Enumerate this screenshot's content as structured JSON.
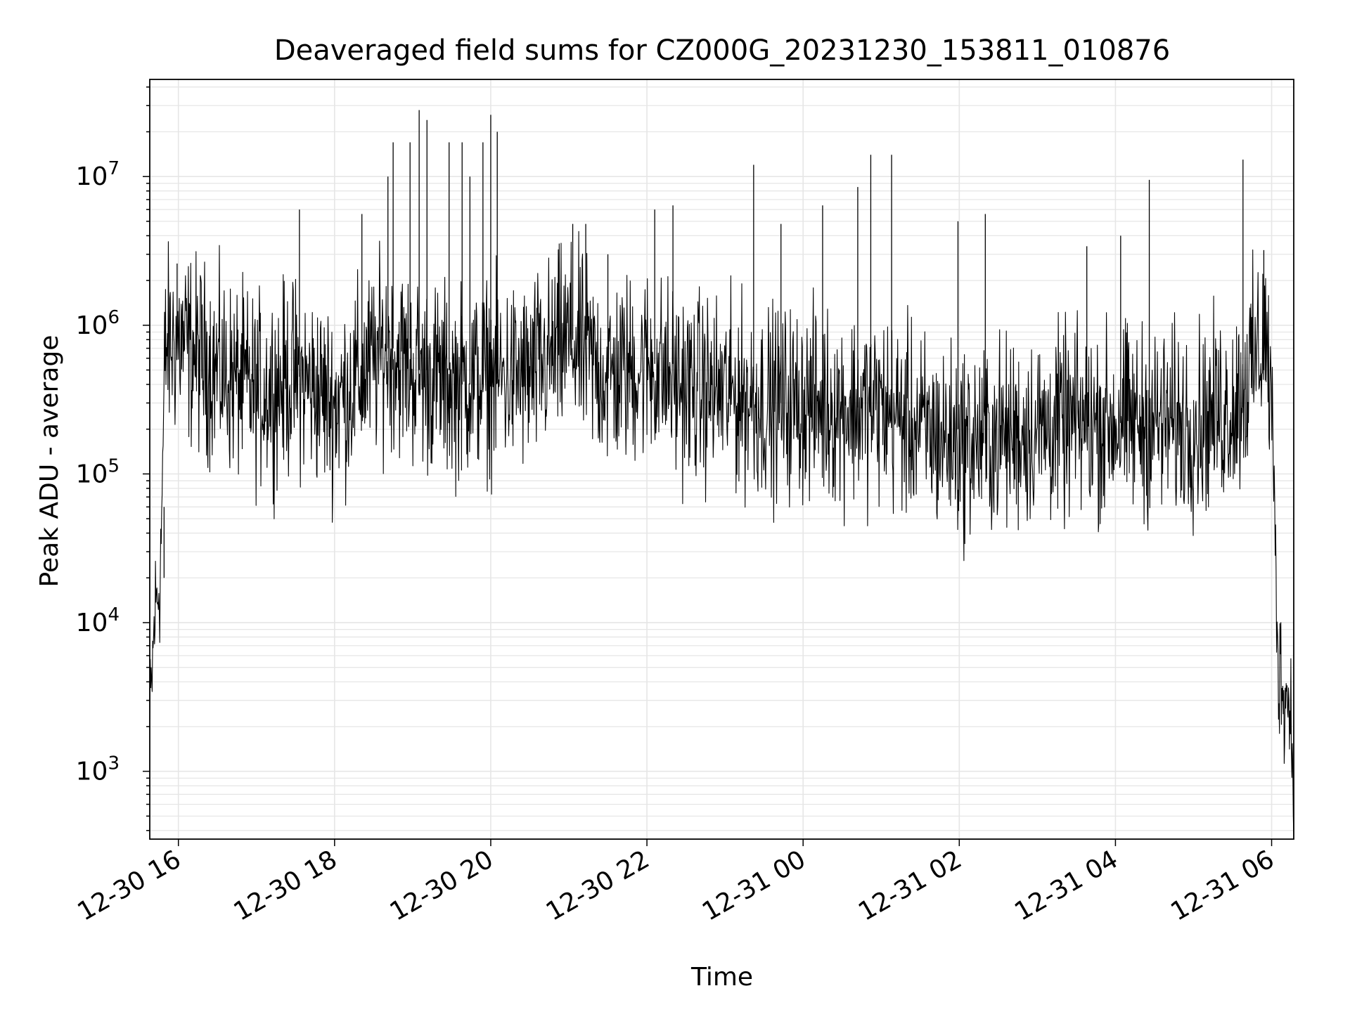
{
  "chart_data": {
    "type": "line",
    "title": "Deaveraged field sums for CZ000G_20231230_153811_010876",
    "xlabel": "Time",
    "ylabel": "Peak ADU - average",
    "yscale": "log",
    "ylim": [
      350,
      45000000
    ],
    "xlim": [
      "2023-12-30 15:38",
      "2023-12-31 06:17"
    ],
    "grid": true,
    "line_color": "#000000",
    "grid_color": "#e6e6e6",
    "xticks": [
      {
        "t": "2023-12-30 16:00",
        "label": "12-30 16"
      },
      {
        "t": "2023-12-30 18:00",
        "label": "12-30 18"
      },
      {
        "t": "2023-12-30 20:00",
        "label": "12-30 20"
      },
      {
        "t": "2023-12-30 22:00",
        "label": "12-30 22"
      },
      {
        "t": "2023-12-31 00:00",
        "label": "12-31 00"
      },
      {
        "t": "2023-12-31 02:00",
        "label": "12-31 02"
      },
      {
        "t": "2023-12-31 04:00",
        "label": "12-31 04"
      },
      {
        "t": "2023-12-31 06:00",
        "label": "12-31 06"
      }
    ],
    "yticks": [
      {
        "value": 1000,
        "base": "10",
        "exp": "3"
      },
      {
        "value": 10000,
        "base": "10",
        "exp": "4"
      },
      {
        "value": 100000,
        "base": "10",
        "exp": "5"
      },
      {
        "value": 1000000,
        "base": "10",
        "exp": "6"
      },
      {
        "value": 10000000,
        "base": "10",
        "exp": "7"
      }
    ],
    "series": [
      {
        "envelope": {
          "t": [
            "2023-12-30 15:38",
            "2023-12-30 15:42",
            "2023-12-30 15:46",
            "2023-12-30 15:50",
            "2023-12-30 16:00",
            "2023-12-30 16:30",
            "2023-12-30 17:00",
            "2023-12-30 17:30",
            "2023-12-30 18:00",
            "2023-12-30 18:20",
            "2023-12-30 18:40",
            "2023-12-30 19:00",
            "2023-12-30 19:30",
            "2023-12-30 20:00",
            "2023-12-30 20:30",
            "2023-12-30 21:00",
            "2023-12-30 21:30",
            "2023-12-30 22:00",
            "2023-12-30 22:30",
            "2023-12-30 23:00",
            "2023-12-30 23:30",
            "2023-12-31 00:00",
            "2023-12-31 00:30",
            "2023-12-31 01:00",
            "2023-12-31 01:30",
            "2023-12-31 02:00",
            "2023-12-31 02:30",
            "2023-12-31 03:00",
            "2023-12-31 03:30",
            "2023-12-31 04:00",
            "2023-12-31 04:30",
            "2023-12-31 05:00",
            "2023-12-31 05:30",
            "2023-12-31 05:45",
            "2023-12-31 05:55",
            "2023-12-31 06:00",
            "2023-12-31 06:05",
            "2023-12-31 06:10",
            "2023-12-31 06:15",
            "2023-12-31 06:17"
          ],
          "median": [
            2000,
            12000,
            20000,
            700000,
            800000,
            500000,
            350000,
            450000,
            300000,
            450000,
            700000,
            500000,
            400000,
            450000,
            450000,
            800000,
            450000,
            550000,
            380000,
            350000,
            300000,
            300000,
            280000,
            280000,
            200000,
            160000,
            180000,
            200000,
            220000,
            220000,
            220000,
            220000,
            280000,
            500000,
            900000,
            300000,
            5000,
            3500,
            2500,
            800
          ]
        },
        "spikes": [
          {
            "t": "2023-12-30 15:49",
            "value": 60000
          },
          {
            "t": "2023-12-30 15:59",
            "value": 2600000
          },
          {
            "t": "2023-12-30 17:33",
            "value": 6000000
          },
          {
            "t": "2023-12-30 18:21",
            "value": 5600000
          },
          {
            "t": "2023-12-30 18:41",
            "value": 10000000
          },
          {
            "t": "2023-12-30 18:45",
            "value": 17000000
          },
          {
            "t": "2023-12-30 18:58",
            "value": 17000000
          },
          {
            "t": "2023-12-30 19:05",
            "value": 28000000
          },
          {
            "t": "2023-12-30 19:11",
            "value": 24000000
          },
          {
            "t": "2023-12-30 19:28",
            "value": 17000000
          },
          {
            "t": "2023-12-30 19:38",
            "value": 17000000
          },
          {
            "t": "2023-12-30 19:44",
            "value": 10000000
          },
          {
            "t": "2023-12-30 19:54",
            "value": 17000000
          },
          {
            "t": "2023-12-30 20:00",
            "value": 26000000
          },
          {
            "t": "2023-12-30 20:05",
            "value": 20000000
          },
          {
            "t": "2023-12-30 21:03",
            "value": 4800000
          },
          {
            "t": "2023-12-30 21:13",
            "value": 4800000
          },
          {
            "t": "2023-12-30 21:30",
            "value": 3000000
          },
          {
            "t": "2023-12-30 22:06",
            "value": 6000000
          },
          {
            "t": "2023-12-30 22:20",
            "value": 6400000
          },
          {
            "t": "2023-12-30 23:22",
            "value": 12000000
          },
          {
            "t": "2023-12-30 23:43",
            "value": 4800000
          },
          {
            "t": "2023-12-31 00:15",
            "value": 6400000
          },
          {
            "t": "2023-12-31 00:42",
            "value": 8500000
          },
          {
            "t": "2023-12-31 00:52",
            "value": 14000000
          },
          {
            "t": "2023-12-31 01:08",
            "value": 14000000
          },
          {
            "t": "2023-12-31 01:59",
            "value": 5000000
          },
          {
            "t": "2023-12-31 02:20",
            "value": 5600000
          },
          {
            "t": "2023-12-31 03:38",
            "value": 3400000
          },
          {
            "t": "2023-12-31 04:04",
            "value": 4000000
          },
          {
            "t": "2023-12-31 04:26",
            "value": 9500000
          },
          {
            "t": "2023-12-31 05:38",
            "value": 13000000
          },
          {
            "t": "2023-12-31 05:54",
            "value": 3200000
          }
        ]
      }
    ]
  }
}
